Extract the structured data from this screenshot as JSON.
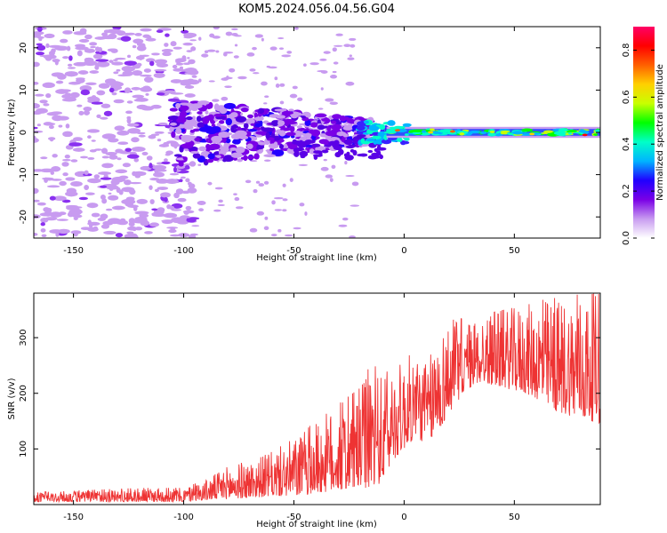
{
  "title": "KOM5.2024.056.04.56.G04",
  "chart_data": [
    {
      "type": "heatmap",
      "xlabel": "Height of straight line (km)",
      "ylabel": "Frequency (Hz)",
      "xlim": [
        -168,
        89
      ],
      "ylim": [
        -25,
        25
      ],
      "xticks": [
        -150,
        -100,
        -50,
        0,
        50
      ],
      "yticks": [
        -20,
        -10,
        0,
        10,
        20
      ],
      "colorbar": {
        "label": "Normalized spectral amplitude",
        "range": [
          0,
          0.9
        ],
        "ticks": [
          0.0,
          0.2,
          0.4,
          0.6,
          0.8
        ],
        "colormap": [
          "#ffffff",
          "#c89bf0",
          "#7a00e6",
          "#2000ff",
          "#00b4ff",
          "#00ffc8",
          "#00ff00",
          "#c8ff00",
          "#ffd000",
          "#ff6000",
          "#ff0000",
          "#ff0066"
        ]
      },
      "regions": [
        {
          "x_range": [
            -168,
            -100
          ],
          "freq_spread_hz": 25,
          "amplitude": 0.05,
          "description_color": "#c89bf0"
        },
        {
          "x_range": [
            -100,
            -20
          ],
          "freq_spread_hz": 8,
          "amplitude": 0.15,
          "description_color": "#5a00e6"
        },
        {
          "x_range": [
            -20,
            0
          ],
          "freq_spread_hz": 3,
          "amplitude": 0.3,
          "description_color": "#00b4ff"
        },
        {
          "x_range": [
            0,
            89
          ],
          "freq_spread_hz": 1,
          "amplitude": 0.5,
          "description_color": "#00ff00"
        }
      ]
    },
    {
      "type": "line",
      "xlabel": "Height of straight line (km)",
      "ylabel": "SNR (v/v)",
      "xlim": [
        -168,
        89
      ],
      "ylim": [
        0,
        380
      ],
      "xticks": [
        -150,
        -100,
        -50,
        0,
        50
      ],
      "yticks": [
        100,
        200,
        300
      ],
      "color": "#ee3333",
      "envelope": {
        "x": [
          -168,
          -150,
          -120,
          -100,
          -90,
          -80,
          -70,
          -60,
          -50,
          -40,
          -30,
          -20,
          -15,
          -10,
          -5,
          0,
          5,
          10,
          15,
          20,
          25,
          30,
          35,
          40,
          45,
          50,
          55,
          60,
          65,
          70,
          75,
          80,
          85,
          89
        ],
        "low": [
          5,
          5,
          5,
          5,
          8,
          10,
          12,
          15,
          15,
          20,
          25,
          30,
          30,
          40,
          80,
          100,
          120,
          110,
          130,
          160,
          190,
          210,
          220,
          215,
          210,
          205,
          200,
          190,
          175,
          165,
          160,
          155,
          150,
          145
        ],
        "high": [
          22,
          25,
          30,
          30,
          45,
          70,
          80,
          95,
          120,
          150,
          180,
          210,
          260,
          230,
          250,
          260,
          280,
          250,
          300,
          330,
          335,
          330,
          340,
          345,
          350,
          355,
          360,
          365,
          370,
          372,
          375,
          378,
          380,
          378
        ]
      }
    }
  ]
}
